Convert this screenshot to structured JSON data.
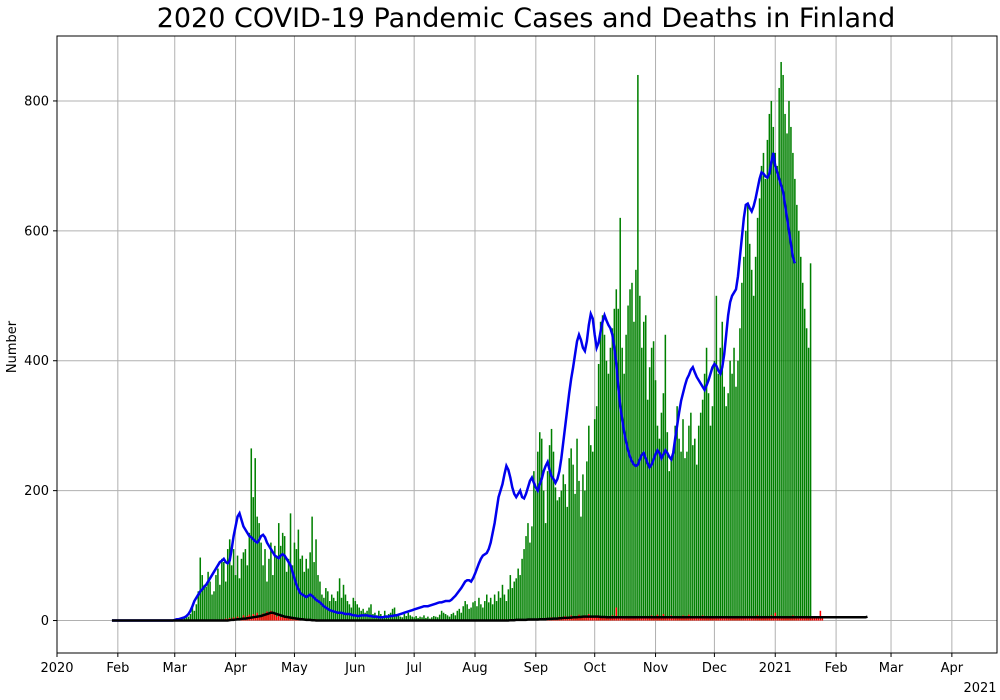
{
  "chart_data": {
    "type": "bar+line",
    "title": "2020 COVID-19 Pandemic Cases and Deaths in Finland",
    "ylabel": "Number",
    "xlabel": "",
    "x_axis": {
      "type": "date",
      "range": [
        "2020-01-01",
        "2021-04-24"
      ],
      "ticks": [
        {
          "date": "2020-01-01",
          "label": "2020"
        },
        {
          "date": "2020-02-01",
          "label": "Feb"
        },
        {
          "date": "2020-03-01",
          "label": "Mar"
        },
        {
          "date": "2020-04-01",
          "label": "Apr"
        },
        {
          "date": "2020-05-01",
          "label": "May"
        },
        {
          "date": "2020-06-01",
          "label": "Jun"
        },
        {
          "date": "2020-07-01",
          "label": "Jul"
        },
        {
          "date": "2020-08-01",
          "label": "Aug"
        },
        {
          "date": "2020-09-01",
          "label": "Sep"
        },
        {
          "date": "2020-10-01",
          "label": "Oct"
        },
        {
          "date": "2020-11-01",
          "label": "Nov"
        },
        {
          "date": "2020-12-01",
          "label": "Dec"
        },
        {
          "date": "2021-01-01",
          "label": "2021"
        },
        {
          "date": "2021-02-01",
          "label": "Feb"
        },
        {
          "date": "2021-03-01",
          "label": "Mar"
        },
        {
          "date": "2021-04-01",
          "label": "Apr"
        }
      ],
      "offset_label": "2021"
    },
    "ylim": [
      -50,
      900
    ],
    "yticks": [
      0,
      200,
      400,
      600,
      800
    ],
    "grid": true,
    "colors": {
      "daily_cases": "#008000",
      "cases_7day_avg": "#0000ee",
      "daily_deaths": "#ff0000",
      "deaths_7day_avg": "#000000",
      "grid": "#b0b0b0"
    },
    "daily_cases": {
      "start": "2020-03-01",
      "values": [
        1,
        2,
        1,
        3,
        2,
        4,
        5,
        6,
        10,
        20,
        15,
        25,
        45,
        97,
        70,
        55,
        52,
        75,
        60,
        40,
        45,
        70,
        80,
        55,
        95,
        90,
        60,
        110,
        125,
        85,
        110,
        70,
        100,
        65,
        95,
        105,
        110,
        85,
        135,
        265,
        190,
        250,
        160,
        150,
        120,
        85,
        110,
        60,
        95,
        120,
        70,
        115,
        100,
        150,
        115,
        135,
        130,
        75,
        95,
        165,
        85,
        120,
        110,
        140,
        95,
        100,
        75,
        95,
        80,
        105,
        160,
        90,
        125,
        70,
        60,
        40,
        35,
        50,
        45,
        30,
        40,
        35,
        30,
        45,
        65,
        35,
        55,
        40,
        30,
        25,
        20,
        35,
        30,
        25,
        20,
        15,
        18,
        12,
        15,
        20,
        25,
        10,
        12,
        8,
        15,
        10,
        6,
        15,
        8,
        10,
        12,
        18,
        20,
        10,
        8,
        6,
        5,
        10,
        7,
        12,
        8,
        6,
        5,
        7,
        4,
        6,
        5,
        8,
        4,
        6,
        3,
        5,
        7,
        6,
        5,
        9,
        15,
        12,
        10,
        8,
        6,
        10,
        12,
        8,
        15,
        18,
        12,
        22,
        30,
        25,
        18,
        20,
        28,
        30,
        22,
        35,
        25,
        20,
        30,
        40,
        28,
        35,
        25,
        40,
        30,
        45,
        35,
        55,
        40,
        30,
        48,
        70,
        50,
        60,
        65,
        80,
        70,
        95,
        110,
        130,
        150,
        120,
        145,
        230,
        200,
        260,
        290,
        280,
        200,
        150,
        230,
        270,
        295,
        260,
        205,
        185,
        190,
        200,
        225,
        210,
        175,
        250,
        265,
        240,
        195,
        280,
        215,
        160,
        225,
        200,
        245,
        300,
        270,
        260,
        310,
        330,
        395,
        460,
        470,
        440,
        400,
        380,
        420,
        450,
        480,
        510,
        480,
        620,
        420,
        380,
        440,
        485,
        510,
        520,
        460,
        540,
        840,
        500,
        420,
        460,
        470,
        340,
        390,
        420,
        430,
        370,
        300,
        280,
        320,
        350,
        440,
        290,
        230,
        250,
        260,
        300,
        330,
        280,
        260,
        310,
        250,
        260,
        300,
        320,
        270,
        280,
        240,
        300,
        320,
        340,
        380,
        420,
        350,
        300,
        330,
        400,
        500,
        380,
        420,
        460,
        360,
        330,
        350,
        400,
        380,
        420,
        360,
        400,
        450,
        520,
        560,
        600,
        640,
        580,
        540,
        500,
        560,
        620,
        650,
        700,
        720,
        680,
        740,
        780,
        800,
        760,
        720,
        700,
        820,
        860,
        840,
        780,
        750,
        800,
        760,
        720,
        680,
        640,
        600,
        560,
        520,
        480,
        450,
        420,
        550
      ]
    },
    "cases_7day_avg": {
      "start": "2020-01-29",
      "values": [
        0,
        0,
        0,
        0,
        0,
        0,
        0,
        0,
        0,
        0,
        0,
        0,
        0,
        0,
        0,
        0,
        0,
        0,
        0,
        0,
        0,
        0,
        0,
        0,
        0,
        0,
        0,
        0,
        0,
        0,
        0,
        0,
        1,
        2,
        2,
        3,
        4,
        5,
        7,
        10,
        15,
        22,
        30,
        35,
        40,
        45,
        48,
        52,
        55,
        60,
        65,
        70,
        75,
        80,
        85,
        90,
        92,
        95,
        90,
        88,
        92,
        110,
        130,
        145,
        160,
        165,
        155,
        145,
        140,
        135,
        130,
        128,
        125,
        122,
        120,
        124,
        130,
        132,
        128,
        120,
        115,
        110,
        105,
        100,
        98,
        96,
        100,
        102,
        100,
        95,
        90,
        85,
        75,
        65,
        55,
        48,
        42,
        40,
        38,
        36,
        38,
        40,
        38,
        35,
        32,
        30,
        28,
        25,
        22,
        20,
        18,
        16,
        15,
        14,
        13,
        12,
        12,
        12,
        11,
        10,
        10,
        10,
        9,
        8,
        8,
        7,
        7,
        8,
        8,
        8,
        8,
        7,
        7,
        6,
        6,
        6,
        5,
        5,
        5,
        6,
        6,
        6,
        7,
        7,
        8,
        8,
        9,
        10,
        11,
        12,
        13,
        14,
        15,
        16,
        17,
        18,
        19,
        20,
        21,
        22,
        22,
        22,
        23,
        24,
        25,
        26,
        27,
        28,
        28,
        29,
        30,
        30,
        30,
        32,
        35,
        38,
        42,
        46,
        50,
        55,
        60,
        62,
        62,
        60,
        65,
        72,
        80,
        88,
        95,
        100,
        102,
        104,
        110,
        120,
        135,
        150,
        170,
        190,
        200,
        210,
        225,
        238,
        232,
        220,
        205,
        195,
        190,
        195,
        200,
        190,
        188,
        195,
        205,
        215,
        220,
        212,
        205,
        200,
        210,
        218,
        230,
        238,
        244,
        232,
        222,
        218,
        212,
        218,
        230,
        250,
        275,
        300,
        325,
        350,
        372,
        390,
        410,
        430,
        440,
        432,
        420,
        415,
        430,
        455,
        472,
        465,
        440,
        420,
        428,
        445,
        460,
        470,
        462,
        455,
        450,
        440,
        420,
        395,
        360,
        330,
        310,
        290,
        275,
        262,
        252,
        245,
        240,
        238,
        240,
        248,
        255,
        258,
        250,
        242,
        236,
        240,
        248,
        256,
        262,
        258,
        250,
        256,
        262,
        258,
        252,
        248,
        258,
        280,
        300,
        320,
        338,
        350,
        362,
        372,
        378,
        386,
        390,
        382,
        375,
        370,
        365,
        360,
        355,
        362,
        370,
        380,
        390,
        395,
        392,
        385,
        380,
        390,
        410,
        440,
        470,
        490,
        500,
        505,
        510,
        530,
        560,
        590,
        620,
        640,
        642,
        635,
        630,
        638,
        650,
        665,
        680,
        690,
        688,
        684,
        682,
        688,
        706,
        720,
        700,
        690,
        680,
        670,
        660,
        640,
        620,
        600,
        580,
        560,
        550
      ]
    },
    "daily_deaths": {
      "start": "2020-03-20",
      "values": [
        0,
        0,
        1,
        0,
        1,
        2,
        1,
        3,
        2,
        4,
        3,
        5,
        2,
        6,
        4,
        3,
        8,
        5,
        7,
        9,
        6,
        10,
        8,
        12,
        7,
        9,
        11,
        8,
        14,
        10,
        15,
        12,
        9,
        6,
        8,
        5,
        7,
        4,
        6,
        3,
        5,
        2,
        4,
        3,
        2,
        1,
        2,
        1,
        3,
        1,
        0,
        1,
        0,
        2,
        1,
        0,
        1,
        0,
        0,
        1,
        0,
        0,
        1,
        0,
        0,
        0,
        1,
        0,
        0,
        0,
        0,
        1,
        0,
        0,
        0,
        0,
        0,
        1,
        0,
        0,
        0,
        0,
        0,
        0,
        0,
        0,
        0,
        0,
        0,
        0,
        0,
        0,
        0,
        0,
        0,
        0,
        0,
        0,
        0,
        0,
        1,
        0,
        0,
        0,
        0,
        1,
        0,
        0,
        1,
        0,
        0,
        0,
        0,
        0,
        0,
        0,
        0,
        0,
        0,
        0,
        0,
        1,
        0,
        0,
        0,
        0,
        1,
        0,
        0,
        0,
        0,
        0,
        1,
        0,
        0,
        1,
        0,
        0,
        0,
        1,
        0,
        1,
        0,
        0,
        1,
        0,
        0,
        1,
        0,
        2,
        0,
        1,
        0,
        0,
        2,
        1,
        0,
        1,
        0,
        2,
        1,
        3,
        1,
        2,
        0,
        1,
        2,
        3,
        1,
        2,
        4,
        2,
        3,
        5,
        2,
        4,
        3,
        6,
        5,
        4,
        7,
        3,
        5,
        8,
        4,
        6,
        5,
        9,
        7,
        6,
        8,
        5,
        10,
        7,
        6,
        5,
        8,
        6,
        4,
        7,
        5,
        6,
        4,
        5,
        8,
        6,
        20,
        5,
        4,
        6,
        3,
        5,
        7,
        4,
        6,
        5,
        3,
        4,
        6,
        5,
        7,
        4,
        5,
        6,
        8,
        5,
        4,
        9,
        6,
        5,
        10,
        7,
        5,
        6,
        8,
        5,
        4,
        6,
        7,
        5,
        8,
        6,
        7,
        9,
        6,
        5,
        4,
        7,
        6,
        5,
        8,
        4,
        6,
        5,
        7,
        6,
        4,
        5,
        3,
        4,
        6,
        5,
        4,
        3,
        5,
        4,
        6,
        3,
        4,
        5,
        6,
        4,
        5,
        3,
        4,
        5,
        6,
        4,
        8,
        5,
        6,
        4,
        7,
        5,
        6,
        8,
        5,
        12,
        6,
        5,
        4,
        6,
        5,
        4,
        6,
        5,
        8,
        4,
        6,
        5,
        7,
        4,
        5,
        6,
        4,
        5,
        6,
        7,
        5,
        6,
        15,
        5
      ]
    },
    "deaths_7day_avg": {
      "start": "2020-01-29",
      "values": [
        0,
        0,
        0,
        0,
        0,
        0,
        0,
        0,
        0,
        0,
        0,
        0,
        0,
        0,
        0,
        0,
        0,
        0,
        0,
        0,
        0,
        0,
        0,
        0,
        0,
        0,
        0,
        0,
        0,
        0,
        0,
        0,
        0,
        0,
        0,
        0,
        0,
        0,
        0,
        0,
        0,
        0,
        0,
        0,
        0,
        0,
        0,
        0,
        0,
        0,
        0,
        0,
        0,
        0,
        0,
        0,
        0,
        0,
        0,
        0,
        0.5,
        1,
        1,
        1.5,
        2,
        2,
        2.5,
        3,
        3,
        3.5,
        4,
        4.5,
        5,
        5.5,
        6,
        6.5,
        7,
        8,
        9,
        10,
        11,
        12,
        12,
        11,
        10,
        9,
        8,
        7,
        6,
        5.5,
        5,
        4.5,
        4,
        3.5,
        3,
        2.5,
        2,
        2,
        1.5,
        1,
        1,
        1,
        0.5,
        0.5,
        0,
        0,
        0,
        0,
        0,
        0,
        0,
        0,
        0,
        0,
        0,
        0,
        0,
        0,
        0,
        0,
        0,
        0,
        0,
        0,
        0,
        0,
        0,
        0,
        0,
        0,
        0,
        0,
        0,
        0,
        0,
        0,
        0,
        0,
        0,
        0,
        0,
        0,
        0,
        0,
        0,
        0,
        0,
        0,
        0,
        0,
        0,
        0,
        0,
        0,
        0,
        0,
        0,
        0,
        0,
        0,
        0,
        0,
        0,
        0,
        0,
        0,
        0,
        0,
        0,
        0,
        0,
        0,
        0,
        0,
        0,
        0,
        0,
        0,
        0,
        0,
        0,
        0,
        0,
        0,
        0,
        0,
        0,
        0,
        0,
        0,
        0,
        0,
        0,
        0,
        0,
        0,
        0,
        0,
        0,
        0,
        0,
        0,
        0,
        0.5,
        0.5,
        0.5,
        1,
        1,
        1,
        1,
        1,
        1,
        1.5,
        1.5,
        1.5,
        1.5,
        1.5,
        1.5,
        2,
        2,
        2,
        2,
        2.5,
        2.5,
        2.5,
        3,
        3,
        3,
        3.5,
        3.5,
        4,
        4,
        4,
        4.5,
        4.5,
        5,
        5,
        5,
        5.5,
        5.5,
        6,
        6,
        6,
        6,
        6,
        6,
        6,
        6,
        6,
        5.5,
        5.5,
        5.5,
        5,
        5,
        5,
        5,
        5,
        5,
        5,
        5,
        5,
        5,
        5,
        5,
        5,
        5,
        5,
        5,
        5,
        5,
        5,
        5,
        5,
        5,
        5,
        5,
        5,
        5,
        5,
        5,
        5,
        5,
        5,
        5,
        5,
        5,
        5,
        5,
        5,
        5,
        5,
        5,
        5,
        5,
        5,
        5,
        5,
        5,
        5,
        5,
        5,
        5,
        5,
        5,
        5,
        5,
        5,
        5,
        5,
        5,
        5,
        5,
        5,
        5,
        5,
        5,
        5,
        5,
        5,
        5,
        5,
        5,
        5,
        5,
        5,
        5,
        5,
        5,
        5,
        5,
        5,
        5,
        5,
        5,
        5,
        5,
        5,
        5,
        5,
        5,
        5,
        5,
        5,
        5,
        5,
        5,
        5,
        5,
        5,
        5,
        5,
        5,
        5,
        5,
        5,
        5,
        5,
        5,
        5,
        5,
        5,
        5,
        5,
        5,
        5,
        5,
        5,
        5,
        5,
        5,
        5,
        5,
        5,
        5,
        5,
        5,
        5,
        5,
        5,
        5,
        5,
        5,
        5,
        5,
        5,
        6
      ]
    }
  }
}
